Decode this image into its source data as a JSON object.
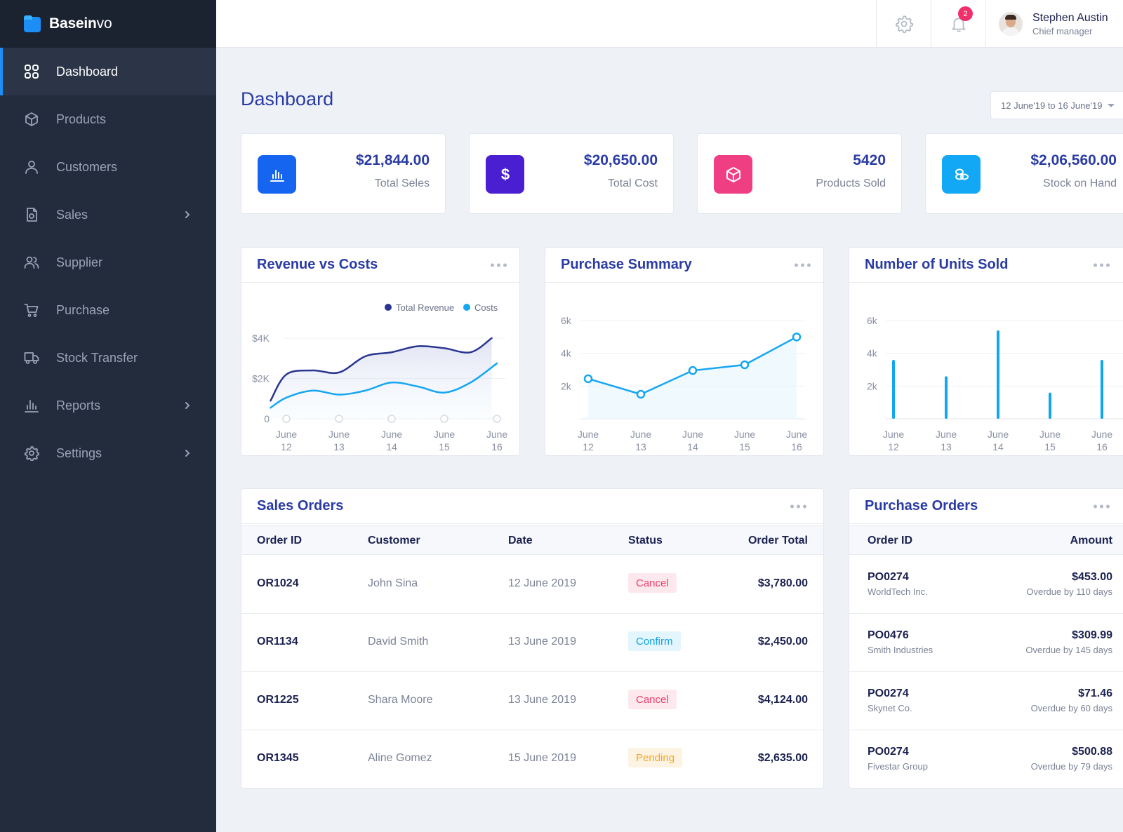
{
  "app": {
    "name_bold": "Basein",
    "name_regular": "vo"
  },
  "colors": {
    "sidebar_bg": "#232c3d",
    "accent": "#1e8ef7",
    "title_blue": "#2a3ba3",
    "revenue_line": "#2a3590",
    "cost_line": "#16a6f2"
  },
  "sidebar": {
    "items": [
      {
        "label": "Dashboard",
        "icon": "grid-icon",
        "active": true
      },
      {
        "label": "Products",
        "icon": "box-icon"
      },
      {
        "label": "Customers",
        "icon": "user-icon"
      },
      {
        "label": "Sales",
        "icon": "receipt-icon",
        "has_submenu": true
      },
      {
        "label": "Supplier",
        "icon": "users-icon"
      },
      {
        "label": "Purchase",
        "icon": "cart-icon"
      },
      {
        "label": "Stock Transfer",
        "icon": "truck-icon"
      },
      {
        "label": "Reports",
        "icon": "bar-chart-icon",
        "has_submenu": true
      },
      {
        "label": "Settings",
        "icon": "gear-icon",
        "has_submenu": true
      }
    ]
  },
  "topbar": {
    "notification_count": "2",
    "user": {
      "name": "Stephen Austin",
      "role": "Chief manager"
    }
  },
  "page": {
    "title": "Dashboard",
    "date_range": "12 June'19 to 16 June'19"
  },
  "stats": [
    {
      "value": "$21,844.00",
      "label": "Total Seles",
      "icon": "bar-chart-icon",
      "color": "#1565f0"
    },
    {
      "value": "$20,650.00",
      "label": "Total Cost",
      "icon": "dollar-icon",
      "color": "#4a1fd1"
    },
    {
      "value": "5420",
      "label": "Products Sold",
      "icon": "box-icon",
      "color": "#ef3e82"
    },
    {
      "value": "$2,06,560.00",
      "label": "Stock on Hand",
      "icon": "coins-icon",
      "color": "#13a8f5"
    }
  ],
  "charts": {
    "revenue": {
      "title": "Revenue vs Costs"
    },
    "purchase": {
      "title": "Purchase Summary"
    },
    "units": {
      "title": "Number of Units Sold"
    }
  },
  "chart_data": [
    {
      "type": "line",
      "title": "Revenue vs Costs",
      "x_label_top": [
        "June",
        "June",
        "June",
        "June",
        "June"
      ],
      "x_label_bottom": [
        "12",
        "13",
        "14",
        "15",
        "16"
      ],
      "y_ticks": [
        "0",
        "$2K",
        "$4K"
      ],
      "ylim": [
        0,
        4000
      ],
      "legend": [
        "Total Revenue",
        "Costs"
      ],
      "legend_position": "top-right",
      "series": [
        {
          "name": "Total Revenue",
          "x": [
            11.7,
            12,
            12.5,
            13,
            13.5,
            14,
            14.5,
            15,
            15.5,
            15.9
          ],
          "values": [
            900,
            2200,
            2400,
            2300,
            3100,
            3300,
            3600,
            3500,
            3300,
            4000
          ]
        },
        {
          "name": "Costs",
          "x": [
            11.7,
            12,
            12.5,
            13,
            13.5,
            14,
            14.5,
            15,
            15.5,
            16
          ],
          "values": [
            550,
            1050,
            1400,
            1200,
            1400,
            1800,
            1600,
            1300,
            1800,
            2750
          ]
        }
      ]
    },
    {
      "type": "line",
      "title": "Purchase Summary",
      "x_label_top": [
        "June",
        "June",
        "June",
        "June",
        "June"
      ],
      "x_label_bottom": [
        "12",
        "13",
        "14",
        "15",
        "16"
      ],
      "y_ticks": [
        "2k",
        "4k",
        "6k"
      ],
      "ylim": [
        0,
        6000
      ],
      "series": [
        {
          "values": [
            2450,
            1500,
            2950,
            3300,
            5000
          ]
        }
      ]
    },
    {
      "type": "bar",
      "title": "Number of Units Sold",
      "x_label_top": [
        "June",
        "June",
        "June",
        "June",
        "June"
      ],
      "x_label_bottom": [
        "12",
        "13",
        "14",
        "15",
        "16"
      ],
      "y_ticks": [
        "2k",
        "4k",
        "6k"
      ],
      "ylim": [
        0,
        6000
      ],
      "series": [
        {
          "values": [
            3600,
            2600,
            5400,
            1600,
            3600
          ]
        }
      ]
    }
  ],
  "sales_orders": {
    "title": "Sales Orders",
    "columns": [
      "Order ID",
      "Customer",
      "Date",
      "Status",
      "Order Total"
    ],
    "rows": [
      {
        "id": "OR1024",
        "customer": "John Sina",
        "date": "12 June 2019",
        "status": "Cancel",
        "total": "$3,780.00"
      },
      {
        "id": "OR1134",
        "customer": "David Smith",
        "date": "13 June 2019",
        "status": "Confirm",
        "total": "$2,450.00"
      },
      {
        "id": "OR1225",
        "customer": "Shara Moore",
        "date": "13 June 2019",
        "status": "Cancel",
        "total": "$4,124.00"
      },
      {
        "id": "OR1345",
        "customer": "Aline Gomez",
        "date": "15 June 2019",
        "status": "Pending",
        "total": "$2,635.00"
      }
    ]
  },
  "purchase_orders": {
    "title": "Purchase Orders",
    "columns": [
      "Order ID",
      "Amount"
    ],
    "rows": [
      {
        "id": "PO0274",
        "company": "WorldTech Inc.",
        "amount": "$453.00",
        "due": "Overdue by 110 days"
      },
      {
        "id": "PO0476",
        "company": "Smith Industries",
        "amount": "$309.99",
        "due": "Overdue by 145 days"
      },
      {
        "id": "PO0274",
        "company": "Skynet Co.",
        "amount": "$71.46",
        "due": "Overdue by 60 days"
      },
      {
        "id": "PO0274",
        "company": "Fivestar Group",
        "amount": "$500.88",
        "due": "Overdue by 79 days"
      }
    ]
  }
}
